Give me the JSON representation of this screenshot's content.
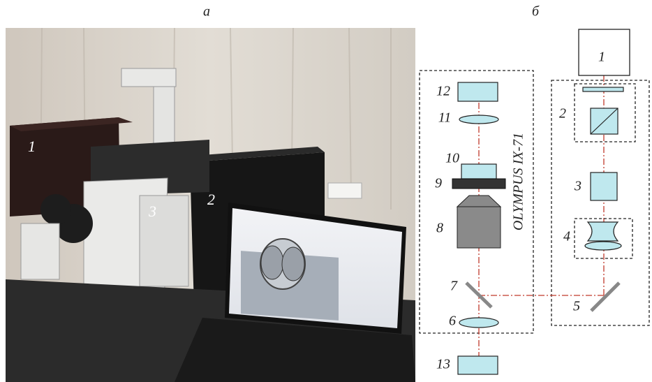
{
  "panels": {
    "a": {
      "label": "а",
      "annotations": [
        "1",
        "2",
        "3"
      ]
    },
    "b": {
      "label": "б",
      "components": [
        "1",
        "2",
        "3",
        "4",
        "5",
        "6",
        "7",
        "8",
        "9",
        "10",
        "11",
        "12",
        "13"
      ],
      "microscope_label": "OLYMPUS IX-71"
    }
  }
}
